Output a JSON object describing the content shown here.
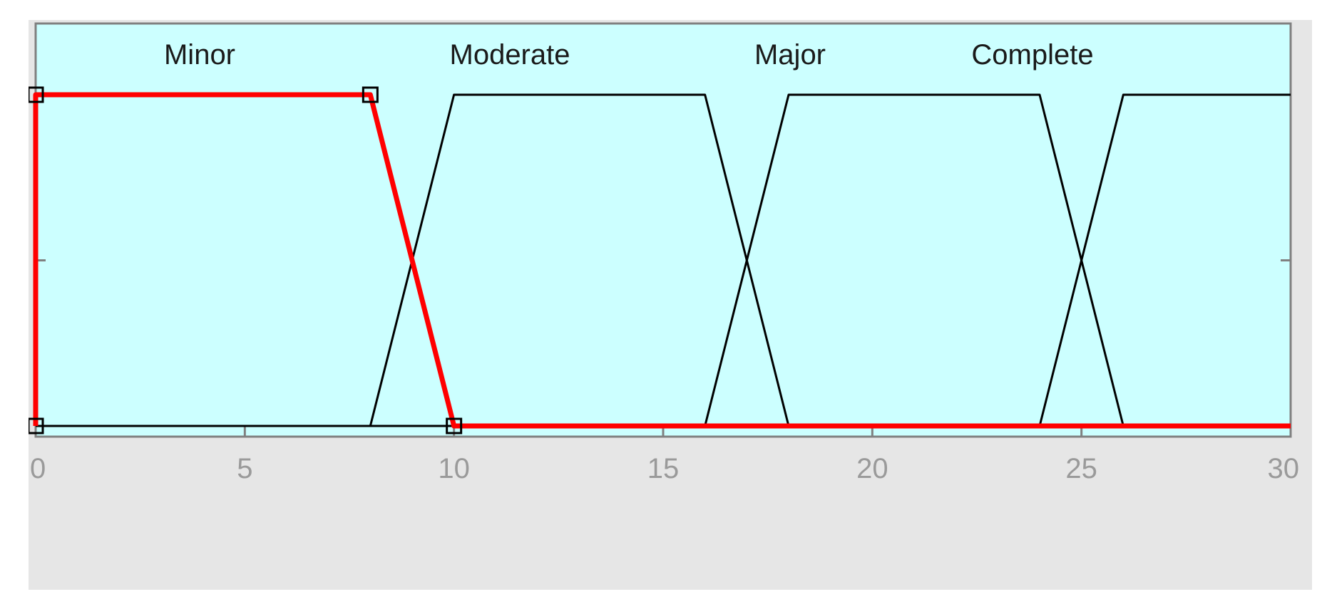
{
  "chart_data": {
    "type": "line",
    "title": "",
    "xlabel": "",
    "ylabel": "",
    "xlim": [
      0,
      30
    ],
    "ylim": [
      0,
      1
    ],
    "xticks": [
      "0",
      "5",
      "10",
      "15",
      "20",
      "25",
      "30"
    ],
    "grid": false,
    "legend": "none",
    "series": [
      {
        "name": "Minor",
        "color": "#ff0000",
        "selected": true,
        "x": [
          0,
          0,
          8,
          10,
          30
        ],
        "y": [
          0,
          1,
          1,
          0,
          0
        ]
      },
      {
        "name": "Moderate",
        "color": "#000000",
        "selected": false,
        "x": [
          0,
          8,
          10,
          16,
          18,
          30
        ],
        "y": [
          0,
          0,
          1,
          1,
          0,
          0
        ]
      },
      {
        "name": "Major",
        "color": "#000000",
        "selected": false,
        "x": [
          0,
          16,
          18,
          24,
          26,
          30
        ],
        "y": [
          0,
          0,
          1,
          1,
          0,
          0
        ]
      },
      {
        "name": "Complete",
        "color": "#000000",
        "selected": false,
        "x": [
          0,
          24,
          26,
          30,
          30
        ],
        "y": [
          0,
          0,
          1,
          1,
          1
        ]
      }
    ]
  },
  "colors": {
    "plot_background": "#ccffff",
    "frame_background": "#e6e6e6",
    "axis": "#808080",
    "tick_label": "#9a9a9a",
    "selected": "#ff0000",
    "unselected": "#000000"
  }
}
